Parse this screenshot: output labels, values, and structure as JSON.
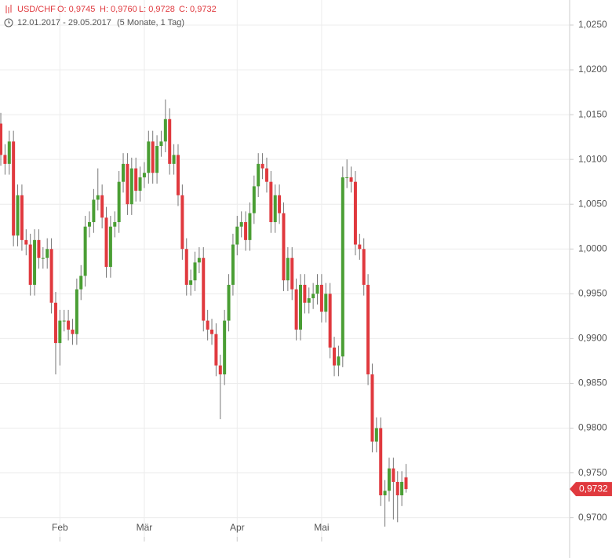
{
  "chart_data": {
    "type": "candlestick",
    "header": {
      "symbol": "USD/CHF",
      "open": "O: 0,9745",
      "high": "H: 0,9760",
      "low": "L: 0,9728",
      "close": "C: 0,9732",
      "range": "12.01.2017 - 29.05.2017",
      "span": "(5 Monate, 1 Tag)"
    },
    "last_label": "0,9732",
    "up_color": "#4a9e34",
    "down_color": "#e0393e",
    "wick_color": "#777777",
    "grid": true,
    "xlim": [
      -0.19,
      134.57
    ],
    "xticks": [
      {
        "value": 14,
        "label": "Feb"
      },
      {
        "value": 34,
        "label": "Mär"
      },
      {
        "value": 56,
        "label": "Apr"
      },
      {
        "value": 76,
        "label": "Mai"
      }
    ],
    "ylim": [
      0.9655,
      1.0278
    ],
    "yticks": [
      {
        "value": 0.97,
        "label": "0,9700"
      },
      {
        "value": 0.975,
        "label": "0,9750"
      },
      {
        "value": 0.98,
        "label": "0,9800"
      },
      {
        "value": 0.985,
        "label": "0,9850"
      },
      {
        "value": 0.99,
        "label": "0,9900"
      },
      {
        "value": 0.995,
        "label": "0,9950"
      },
      {
        "value": 1,
        "label": "1,0000"
      },
      {
        "value": 1.005,
        "label": "1,0050"
      },
      {
        "value": 1.01,
        "label": "1,0100"
      },
      {
        "value": 1.015,
        "label": "1,0150"
      },
      {
        "value": 1.02,
        "label": "1,0200"
      },
      {
        "value": 1.025,
        "label": "1,0250"
      }
    ],
    "open": [
      1.014,
      1.0105,
      1.0095,
      1.012,
      1.0015,
      1.006,
      1.001,
      1.0005,
      0.996,
      1.001,
      0.999,
      0.999,
      1.0,
      0.994,
      0.9895,
      0.992,
      0.992,
      0.991,
      0.9905,
      0.9955,
      0.997,
      1.0025,
      1.003,
      1.0055,
      1.006,
      1.0035,
      0.998,
      1.0025,
      1.003,
      1.0075,
      1.0095,
      1.005,
      1.009,
      1.0065,
      1.008,
      1.0085,
      1.012,
      1.0085,
      1.0115,
      1.012,
      1.0145,
      1.0095,
      1.0105,
      1.006,
      1.0,
      0.996,
      0.9965,
      0.9985,
      0.999,
      0.992,
      0.991,
      0.9905,
      0.987,
      0.986,
      0.992,
      0.996,
      1.0005,
      1.0025,
      1.003,
      1.001,
      1.004,
      1.007,
      1.0095,
      1.009,
      1.0075,
      1.003,
      1.006,
      1.004,
      0.9965,
      0.999,
      0.9955,
      0.991,
      0.996,
      0.994,
      0.9945,
      0.995,
      0.996,
      0.993,
      0.995,
      0.989,
      0.987,
      0.988,
      1.008,
      1.008,
      1.0075,
      1.0005,
      1.0,
      0.996,
      0.986,
      0.9785,
      0.98,
      0.9725,
      0.973,
      0.9755,
      0.974,
      0.9725,
      0.9745
    ],
    "high": [
      1.0152,
      1.0117,
      1.0132,
      1.0132,
      1.0072,
      1.0072,
      1.0022,
      1.0017,
      1.0022,
      1.0022,
      1.0002,
      1.0012,
      1.0012,
      0.9952,
      0.9932,
      0.9932,
      0.9932,
      0.9922,
      0.9967,
      0.9982,
      1.0037,
      1.0042,
      1.0067,
      1.009,
      1.0072,
      1.0047,
      1.0037,
      1.0042,
      1.0087,
      1.0107,
      1.0107,
      1.0102,
      1.0102,
      1.0092,
      1.0097,
      1.0132,
      1.0132,
      1.0127,
      1.0132,
      1.0167,
      1.0157,
      1.0117,
      1.0117,
      1.0072,
      1.0012,
      0.9977,
      0.9997,
      1.0002,
      1.0002,
      0.9932,
      0.9922,
      0.9917,
      0.9882,
      0.9932,
      0.9972,
      1.0017,
      1.0037,
      1.0042,
      1.0042,
      1.0052,
      1.0082,
      1.0107,
      1.0107,
      1.0102,
      1.0087,
      1.0072,
      1.0072,
      1.0052,
      1.0002,
      1.0002,
      0.9967,
      0.9972,
      0.9972,
      0.9957,
      0.9962,
      0.9972,
      0.9972,
      0.9962,
      0.9962,
      0.9902,
      0.9892,
      1.0092,
      1.01,
      1.0092,
      1.0087,
      1.0017,
      1.0012,
      0.9972,
      0.9872,
      0.9812,
      0.9812,
      0.9742,
      0.9767,
      0.9767,
      0.9752,
      0.9752,
      0.976
    ],
    "low": [
      1.0093,
      1.0083,
      1.0083,
      1.0003,
      1.0003,
      0.9998,
      0.9993,
      0.9948,
      0.9948,
      0.9978,
      0.9978,
      0.9978,
      0.9928,
      0.986,
      0.987,
      0.9908,
      0.9898,
      0.9893,
      0.9893,
      0.9943,
      0.9958,
      1.0013,
      1.0018,
      1.0043,
      1.0023,
      0.9968,
      0.9968,
      1.0013,
      1.0018,
      1.0063,
      1.0038,
      1.0038,
      1.0053,
      1.0053,
      1.0068,
      1.0073,
      1.0073,
      1.0073,
      1.0103,
      1.0108,
      1.0083,
      1.0083,
      1.0048,
      0.9988,
      0.9948,
      0.9948,
      0.9953,
      0.9973,
      0.9908,
      0.9898,
      0.9893,
      0.9858,
      0.981,
      0.9848,
      0.9908,
      0.9948,
      0.9993,
      1.0013,
      0.9998,
      0.9998,
      1.0028,
      1.0058,
      1.0078,
      1.0063,
      1.0018,
      1.0018,
      1.0028,
      0.9953,
      0.9953,
      0.9943,
      0.9898,
      0.9898,
      0.9928,
      0.9928,
      0.9933,
      0.9938,
      0.9918,
      0.9918,
      0.9878,
      0.9858,
      0.9858,
      0.9868,
      1.0068,
      1.0063,
      0.9993,
      0.9988,
      0.9948,
      0.9848,
      0.9773,
      0.9773,
      0.9713,
      0.969,
      0.9718,
      0.9698,
      0.9695,
      0.9713,
      0.9728
    ],
    "close": [
      1.0105,
      1.0095,
      1.012,
      1.0015,
      1.006,
      1.001,
      1.0005,
      0.996,
      1.001,
      0.999,
      0.999,
      1.0,
      0.994,
      0.9895,
      0.992,
      0.992,
      0.991,
      0.9905,
      0.9955,
      0.997,
      1.0025,
      1.003,
      1.0055,
      1.006,
      1.0035,
      0.998,
      1.0025,
      1.003,
      1.0075,
      1.0095,
      1.005,
      1.009,
      1.0065,
      1.008,
      1.0085,
      1.012,
      1.0085,
      1.0115,
      1.012,
      1.0145,
      1.0095,
      1.0105,
      1.006,
      1.0,
      0.996,
      0.9965,
      0.9985,
      0.999,
      0.992,
      0.991,
      0.9905,
      0.987,
      0.986,
      0.992,
      0.996,
      1.0005,
      1.0025,
      1.003,
      1.001,
      1.004,
      1.007,
      1.0095,
      1.009,
      1.0075,
      1.003,
      1.006,
      1.004,
      0.9965,
      0.999,
      0.9955,
      0.991,
      0.996,
      0.994,
      0.9945,
      0.995,
      0.996,
      0.993,
      0.995,
      0.989,
      0.987,
      0.988,
      1.008,
      1.008,
      1.0075,
      1.0005,
      1.0,
      0.996,
      0.986,
      0.9785,
      0.98,
      0.9725,
      0.973,
      0.9755,
      0.974,
      0.9725,
      0.974,
      0.9732
    ]
  }
}
